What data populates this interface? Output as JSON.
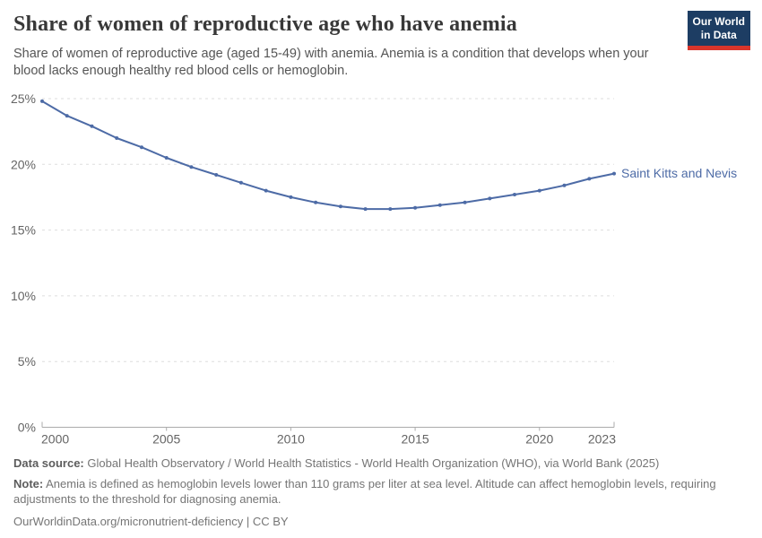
{
  "header": {
    "title": "Share of women of reproductive age who have anemia",
    "subtitle": "Share of women of reproductive age (aged 15-49) with anemia. Anemia is a condition that develops when your blood lacks enough healthy red blood cells or hemoglobin.",
    "logo": {
      "line1": "Our World",
      "line2": "in Data",
      "bg_color": "#1d3d63",
      "stripe_color": "#d9352b"
    }
  },
  "chart_data": {
    "type": "line",
    "title": "Share of women of reproductive age who have anemia",
    "x": [
      2000,
      2001,
      2002,
      2003,
      2004,
      2005,
      2006,
      2007,
      2008,
      2009,
      2010,
      2011,
      2012,
      2013,
      2014,
      2015,
      2016,
      2017,
      2018,
      2019,
      2020,
      2021,
      2022,
      2023
    ],
    "series": [
      {
        "name": "Saint Kitts and Nevis",
        "color": "#4d6ba6",
        "values": [
          24.8,
          23.7,
          22.9,
          22.0,
          21.3,
          20.5,
          19.8,
          19.2,
          18.6,
          18.0,
          17.5,
          17.1,
          16.8,
          16.6,
          16.6,
          16.7,
          16.9,
          17.1,
          17.4,
          17.7,
          18.0,
          18.4,
          18.9,
          19.3
        ]
      }
    ],
    "xlabel": "",
    "ylabel": "",
    "ylim": [
      0,
      25
    ],
    "yticks": [
      0,
      5,
      10,
      15,
      20,
      25
    ],
    "ytick_suffix": "%",
    "xticks": [
      2000,
      2005,
      2010,
      2015,
      2020,
      2023
    ],
    "grid": "horizontal-dashed",
    "legend": "end-of-line-label"
  },
  "footer": {
    "source_label": "Data source:",
    "source_text": "Global Health Observatory / World Health Statistics - World Health Organization (WHO), via World Bank (2025)",
    "note_label": "Note:",
    "note_text": "Anemia is defined as hemoglobin levels lower than 110 grams per liter at sea level. Altitude can affect hemoglobin levels, requiring adjustments to the threshold for diagnosing anemia.",
    "link": "OurWorldinData.org/micronutrient-deficiency | CC BY"
  }
}
